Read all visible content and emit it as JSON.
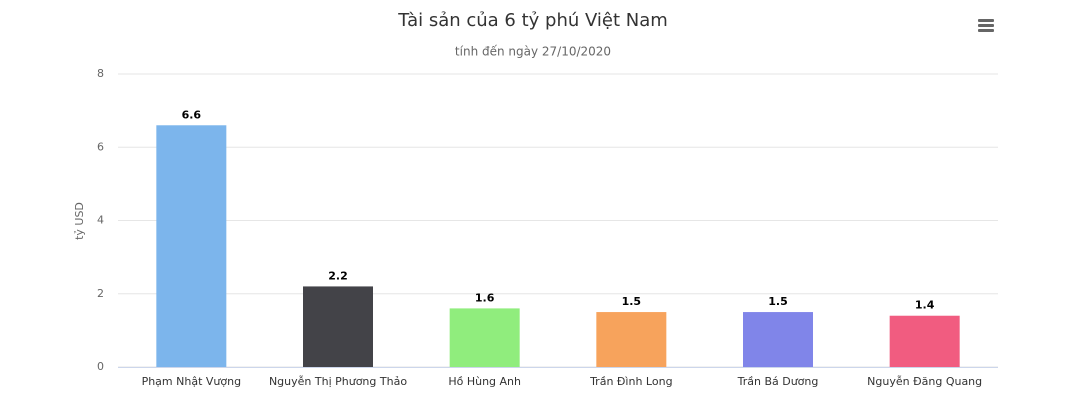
{
  "chart_data": {
    "type": "bar",
    "title": "Tài sản của 6 tỷ phú Việt Nam",
    "subtitle": "tính đến ngày 27/10/2020",
    "y_label": "tỷ USD",
    "categories": [
      "Phạm Nhật Vượng",
      "Nguyễn Thị Phương Thảo",
      "Hồ Hùng Anh",
      "Trần Đình Long",
      "Trần Bá Dương",
      "Nguyễn Đăng Quang"
    ],
    "values": [
      6.6,
      2.2,
      1.6,
      1.5,
      1.5,
      1.4
    ],
    "colors": [
      "#7cb5ec",
      "#434348",
      "#90ed7d",
      "#f7a35c",
      "#8085e9",
      "#f15c80"
    ],
    "ylim": [
      0,
      8
    ],
    "yticks": [
      0,
      2,
      4,
      6,
      8
    ],
    "grid": true
  }
}
